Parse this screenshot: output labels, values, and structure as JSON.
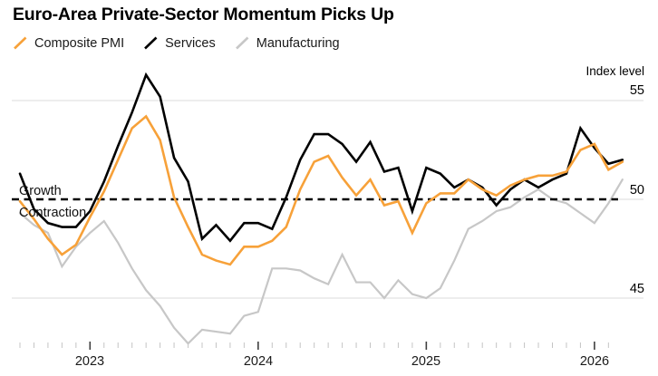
{
  "header": {
    "title": "Euro-Area Private-Sector Momentum Picks Up"
  },
  "legend": [
    {
      "label": "Composite PMI",
      "color": "#F7A139"
    },
    {
      "label": "Services",
      "color": "#000000"
    },
    {
      "label": "Manufacturing",
      "color": "#C7C7C7"
    }
  ],
  "chart_data": {
    "type": "line",
    "title": "Euro-Area Private-Sector Momentum Picks Up",
    "y_axis_label": "Index level",
    "y_ticks": [
      45,
      50,
      55
    ],
    "ylim": [
      42,
      57
    ],
    "grid": "horizontal",
    "legend_position": "top",
    "x_axis_year_labels": [
      "2023",
      "2024",
      "2025",
      "2026"
    ],
    "x": [
      "2022-07",
      "2022-08",
      "2022-09",
      "2022-10",
      "2022-11",
      "2022-12",
      "2023-01",
      "2023-02",
      "2023-03",
      "2023-04",
      "2023-05",
      "2023-06",
      "2023-07",
      "2023-08",
      "2023-09",
      "2023-10",
      "2023-11",
      "2023-12",
      "2024-01",
      "2024-02",
      "2024-03",
      "2024-04",
      "2024-05",
      "2024-06",
      "2024-07",
      "2024-08",
      "2024-09",
      "2024-10",
      "2024-11",
      "2024-12",
      "2025-01",
      "2025-02",
      "2025-03",
      "2025-04",
      "2025-05",
      "2025-06",
      "2025-07",
      "2025-08",
      "2025-09",
      "2025-10",
      "2025-11",
      "2025-12",
      "2026-01",
      "2026-02"
    ],
    "series": [
      {
        "name": "Composite PMI",
        "color": "#F7A139",
        "width": 2.6,
        "values": [
          49.9,
          49.0,
          48.0,
          47.2,
          47.7,
          49.1,
          50.4,
          52.0,
          53.6,
          54.2,
          53.0,
          50.1,
          48.6,
          47.2,
          46.9,
          46.7,
          47.6,
          47.6,
          47.9,
          48.6,
          50.5,
          51.9,
          52.2,
          51.1,
          50.2,
          51.0,
          49.7,
          49.9,
          48.3,
          49.8,
          50.3,
          50.3,
          51.0,
          50.5,
          50.2,
          50.7,
          51.0,
          51.2,
          51.2,
          51.4,
          52.5,
          52.8,
          51.5,
          51.9
        ]
      },
      {
        "name": "Services",
        "color": "#000000",
        "width": 2.6,
        "values": [
          51.3,
          49.5,
          48.8,
          48.6,
          48.6,
          49.4,
          50.9,
          52.7,
          54.4,
          56.3,
          55.2,
          52.1,
          50.9,
          48.0,
          48.7,
          47.9,
          48.8,
          48.8,
          48.5,
          50.1,
          52.0,
          53.3,
          53.3,
          52.8,
          51.9,
          52.9,
          51.4,
          51.6,
          49.4,
          51.6,
          51.3,
          50.6,
          51.0,
          50.6,
          49.7,
          50.5,
          51.0,
          50.6,
          51.0,
          51.3,
          53.6,
          52.6,
          51.8,
          52.0
        ]
      },
      {
        "name": "Manufacturing",
        "color": "#C7C7C7",
        "width": 2.2,
        "values": [
          49.3,
          48.7,
          48.3,
          46.6,
          47.6,
          48.3,
          48.9,
          47.8,
          46.5,
          45.4,
          44.6,
          43.5,
          42.7,
          43.4,
          43.3,
          43.2,
          44.1,
          44.3,
          46.5,
          46.5,
          46.4,
          46.0,
          45.7,
          47.2,
          45.8,
          45.8,
          45.0,
          45.9,
          45.2,
          45.0,
          45.5,
          46.9,
          48.5,
          48.9,
          49.4,
          49.6,
          50.1,
          50.5,
          50.0,
          49.8,
          49.3,
          48.8,
          49.8,
          51.0
        ]
      }
    ],
    "baseline": {
      "value": 50,
      "style": "dashed",
      "label_above": "Growth",
      "label_below": "Contraction"
    }
  }
}
